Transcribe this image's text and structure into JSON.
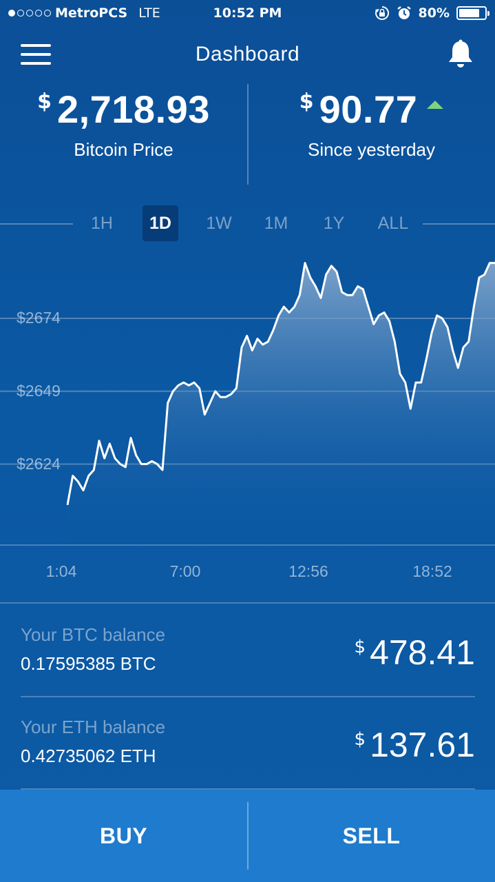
{
  "status_bar": {
    "signal_bars_filled": 1,
    "signal_bars_total": 5,
    "carrier": "MetroPCS",
    "network": "LTE",
    "time": "10:52 PM",
    "battery_percent": "80%",
    "battery_level": 0.8,
    "icons": [
      "orientation-lock-icon",
      "alarm-icon"
    ]
  },
  "nav": {
    "title": "Dashboard",
    "menu_icon": "hamburger-menu-icon",
    "notification_icon": "bell-icon"
  },
  "stats": {
    "price": {
      "currency": "$",
      "value": "2,718.93",
      "caption": "Bitcoin Price"
    },
    "change": {
      "currency": "$",
      "value": "90.77",
      "caption": "Since yesterday",
      "direction": "up",
      "direction_color": "#7ed27e"
    }
  },
  "ranges": {
    "tabs": [
      "1H",
      "1D",
      "1W",
      "1M",
      "1Y",
      "ALL"
    ],
    "selected": "1D"
  },
  "chart_data": {
    "type": "area",
    "y_tick_labels": [
      "$2674",
      "$2649",
      "$2624"
    ],
    "y_ticks": [
      2674,
      2649,
      2624
    ],
    "ylim": [
      2596,
      2700
    ],
    "x_tick_labels": [
      "1:04",
      "7:00",
      "12:56",
      "18:52"
    ],
    "line_color": "#ffffff",
    "fill_color": "#6f97c0",
    "series": [
      {
        "values": [
          2610,
          2620,
          2618,
          2615,
          2620,
          2622,
          2632,
          2626,
          2631,
          2626,
          2624,
          2623,
          2633,
          2627,
          2624,
          2624,
          2625,
          2624,
          2622,
          2645,
          2649,
          2651,
          2652,
          2651,
          2652,
          2650,
          2641,
          2645,
          2649,
          2647,
          2647,
          2648,
          2650,
          2664,
          2668,
          2663,
          2667,
          2665,
          2666,
          2670,
          2675,
          2678,
          2676,
          2678,
          2682,
          2693,
          2688,
          2685,
          2681,
          2689,
          2692,
          2690,
          2683,
          2682,
          2682,
          2685,
          2684,
          2678,
          2672,
          2675,
          2676,
          2673,
          2666,
          2655,
          2652,
          2643,
          2652,
          2652,
          2660,
          2669,
          2675,
          2674,
          2671,
          2663,
          2657,
          2664,
          2666,
          2678,
          2688,
          2689,
          2693,
          2693
        ]
      }
    ]
  },
  "balances": [
    {
      "label": "Your BTC balance",
      "amount": "0.17595385 BTC",
      "currency": "$",
      "value": "478.41"
    },
    {
      "label": "Your ETH balance",
      "amount": "0.42735062 ETH",
      "currency": "$",
      "value": "137.61"
    }
  ],
  "actions": {
    "buy_label": "BUY",
    "sell_label": "SELL"
  }
}
